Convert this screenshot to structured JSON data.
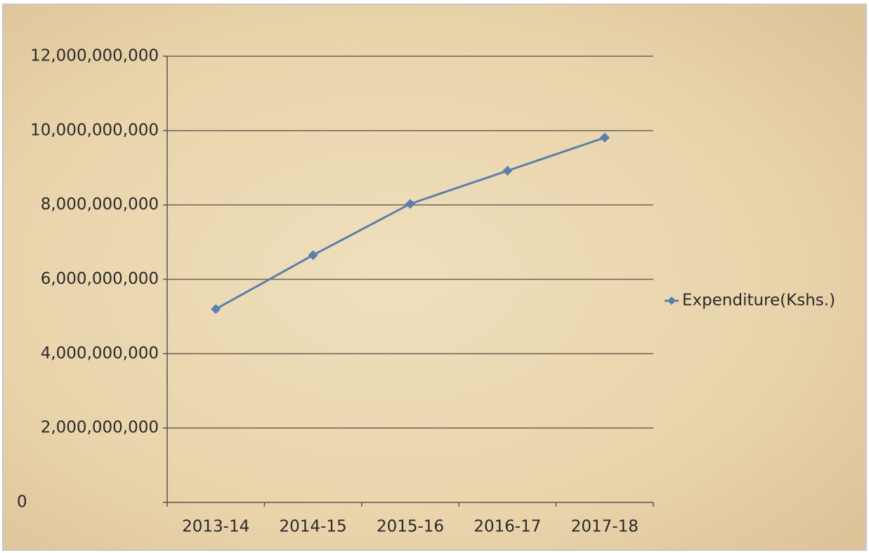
{
  "chart_data": {
    "type": "line",
    "categories": [
      "2013-14",
      "2014-15",
      "2015-16",
      "2016-17",
      "2017-18"
    ],
    "series": [
      {
        "name": "Expenditure(Kshs.)",
        "color": "#5b7fad",
        "values": [
          5200000000,
          6650000000,
          8030000000,
          8920000000,
          9810000000
        ]
      }
    ],
    "ylim": [
      0,
      12000000000
    ],
    "yticks": [
      0,
      {
        "value": 2000000000,
        "label": "2,000,000,000"
      },
      {
        "value": 4000000000,
        "label": "4,000,000,000"
      },
      {
        "value": 6000000000,
        "label": "6,000,000,000"
      },
      {
        "value": 8000000000,
        "label": "8,000,000,000"
      },
      {
        "value": 10000000000,
        "label": "10,000,000,000"
      },
      {
        "value": 12000000000,
        "label": "12,000,000,000"
      }
    ],
    "grid": true,
    "legend": "right"
  }
}
